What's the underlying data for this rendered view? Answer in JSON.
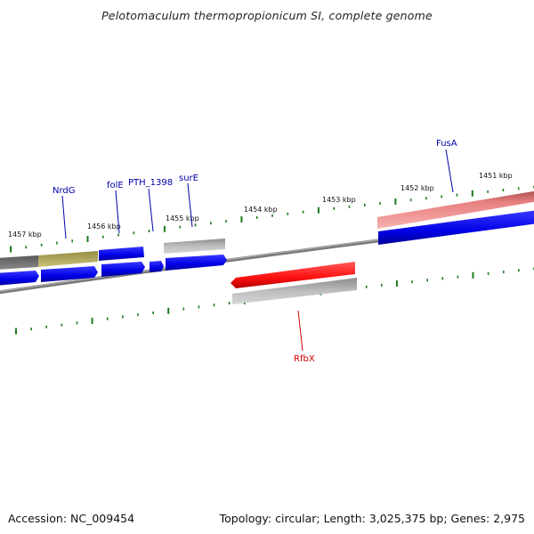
{
  "title": "Pelotomaculum thermopropionicum SI, complete genome",
  "footer": {
    "accession": "Accession: NC_009454",
    "summary": "Topology: circular; Length: 3,025,375 bp; Genes: 2,975"
  },
  "colors": {
    "backbone": "#808080",
    "tick": "#1c7a1c",
    "gene_forward": "#0000ee",
    "gene_reverse": "#ff1a1a",
    "feature_gray": "#a8a8a8",
    "feature_olive": "#b5ad62",
    "feature_darkgray": "#707070",
    "feature_pink": "#ef8c8c",
    "label_blue": "#0000aa",
    "label_red": "#cc0000"
  },
  "scale_labels": [
    "1457 kbp",
    "1456 kbp",
    "1455 kbp",
    "1454 kbp",
    "1453 kbp",
    "1452 kbp",
    "1451 kbp"
  ],
  "gene_labels": {
    "nrdg": "NrdG",
    "fole": "folE",
    "pth": "PTH_1398",
    "sure": "surE",
    "fusa": "FusA",
    "rfbx": "RfbX"
  }
}
